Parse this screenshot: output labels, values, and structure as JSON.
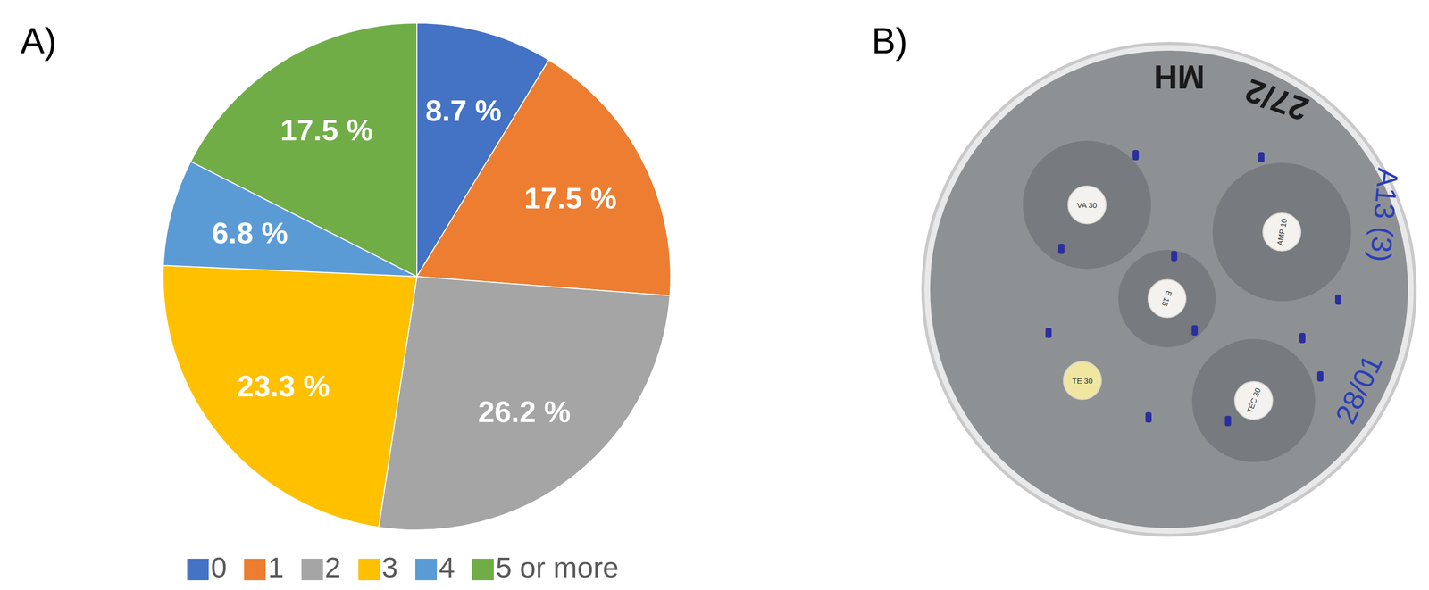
{
  "chart_data": {
    "type": "pie",
    "categories": [
      "0",
      "1",
      "2",
      "3",
      "4",
      "5 or more"
    ],
    "values": [
      8.7,
      17.5,
      26.2,
      23.3,
      6.8,
      17.5
    ],
    "value_labels": [
      "8.7 %",
      "17.5 %",
      "26.2 %",
      "23.3 %",
      "6.8 %",
      "17.5 %"
    ],
    "colors": [
      "#4472c4",
      "#ed7d31",
      "#a5a5a5",
      "#ffc000",
      "#5b9bd5",
      "#70ad47"
    ],
    "data_labels": true,
    "legend": "bottom"
  },
  "panel_labels": [
    "A)",
    "B)"
  ],
  "agar_plate": {
    "discs": [
      "VA 30",
      "AMP 10",
      "E 15",
      "TE 30",
      "TEC 30"
    ],
    "handwritten": [
      "MH",
      "27/2",
      "A13 (3)",
      "28/01"
    ]
  }
}
